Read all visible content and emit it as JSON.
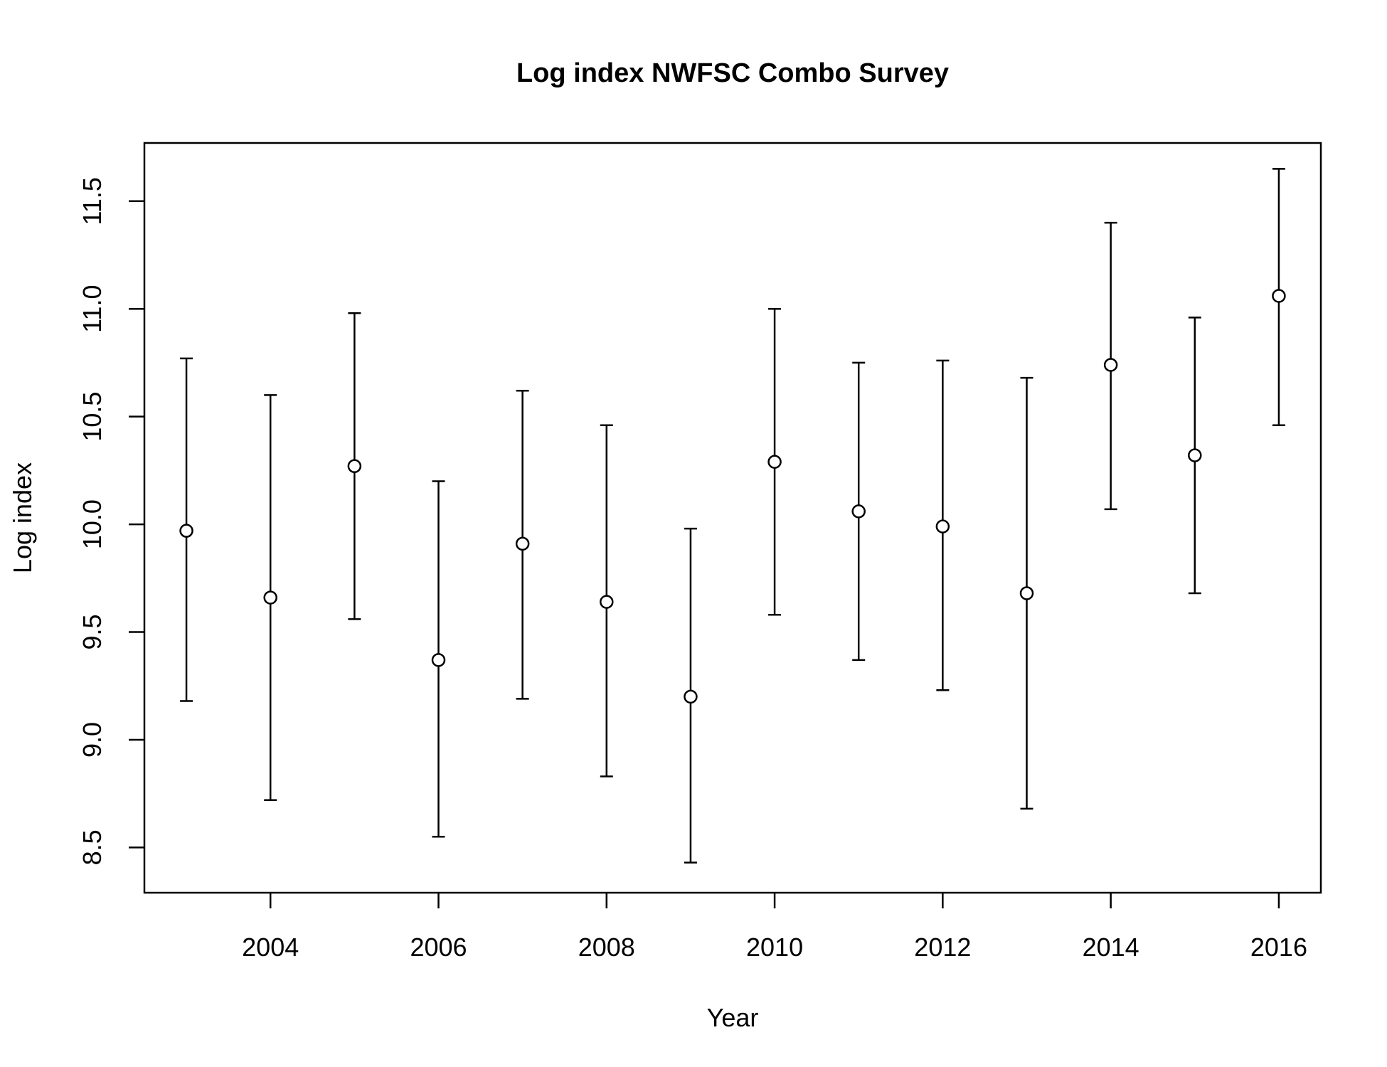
{
  "chart_data": {
    "type": "scatter",
    "title": "Log index NWFSC Combo Survey",
    "xlabel": "Year",
    "ylabel": "Log index",
    "xlim": [
      2002.5,
      2016.5
    ],
    "ylim": [
      8.29,
      11.77
    ],
    "xticks": [
      "2004",
      "2006",
      "2008",
      "2010",
      "2012",
      "2014",
      "2016"
    ],
    "yticks": [
      "8.5",
      "9.0",
      "9.5",
      "10.0",
      "10.5",
      "11.0",
      "11.5"
    ],
    "grid": false,
    "legend": "none",
    "error_bars": true,
    "series": [
      {
        "x": [
          2003,
          2004,
          2005,
          2006,
          2007,
          2008,
          2009,
          2010,
          2011,
          2012,
          2013,
          2014,
          2015,
          2016
        ],
        "y": [
          9.97,
          9.66,
          10.27,
          9.37,
          9.91,
          9.64,
          9.2,
          10.29,
          10.06,
          9.99,
          9.68,
          10.74,
          10.32,
          11.06
        ],
        "lower": [
          9.18,
          8.72,
          9.56,
          8.55,
          9.19,
          8.83,
          8.43,
          9.58,
          9.37,
          9.23,
          8.68,
          10.07,
          9.68,
          10.46
        ],
        "upper": [
          10.77,
          10.6,
          10.98,
          10.2,
          10.62,
          10.46,
          9.98,
          11.0,
          10.75,
          10.76,
          10.68,
          11.4,
          10.96,
          11.65
        ]
      }
    ]
  }
}
